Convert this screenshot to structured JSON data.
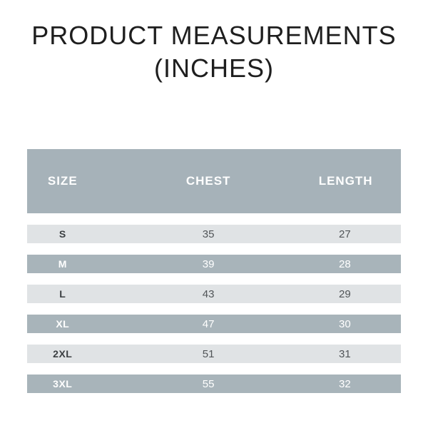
{
  "title": {
    "line1": "PRODUCT MEASUREMENTS",
    "line2": "(INCHES)"
  },
  "table": {
    "columns": [
      "SIZE",
      "CHEST",
      "LENGTH"
    ],
    "rows": [
      {
        "size": "S",
        "chest": "35",
        "length": "27"
      },
      {
        "size": "M",
        "chest": "39",
        "length": "28"
      },
      {
        "size": "L",
        "chest": "43",
        "length": "29"
      },
      {
        "size": "XL",
        "chest": "47",
        "length": "30"
      },
      {
        "size": "2XL",
        "chest": "51",
        "length": "31"
      },
      {
        "size": "3XL",
        "chest": "55",
        "length": "32"
      }
    ]
  },
  "colors": {
    "title": "#1e1e1e",
    "header_bg": "#a6b2b9",
    "dark_row_bg": "#a8b4ba",
    "light_row_bg": "#e0e3e5",
    "light_row_label": "#3b3f42",
    "light_row_value": "#515558",
    "row_text_on_dark": "#ffffff",
    "background": "#ffffff"
  },
  "chart_data": {
    "type": "table",
    "title": "PRODUCT MEASUREMENTS (INCHES)",
    "columns": [
      "SIZE",
      "CHEST",
      "LENGTH"
    ],
    "rows": [
      [
        "S",
        35,
        27
      ],
      [
        "M",
        39,
        28
      ],
      [
        "L",
        43,
        29
      ],
      [
        "XL",
        47,
        30
      ],
      [
        "2XL",
        51,
        31
      ],
      [
        "3XL",
        55,
        32
      ]
    ],
    "units": "inches",
    "layout": "header band + alternating light/dark striped rows with white gaps"
  }
}
